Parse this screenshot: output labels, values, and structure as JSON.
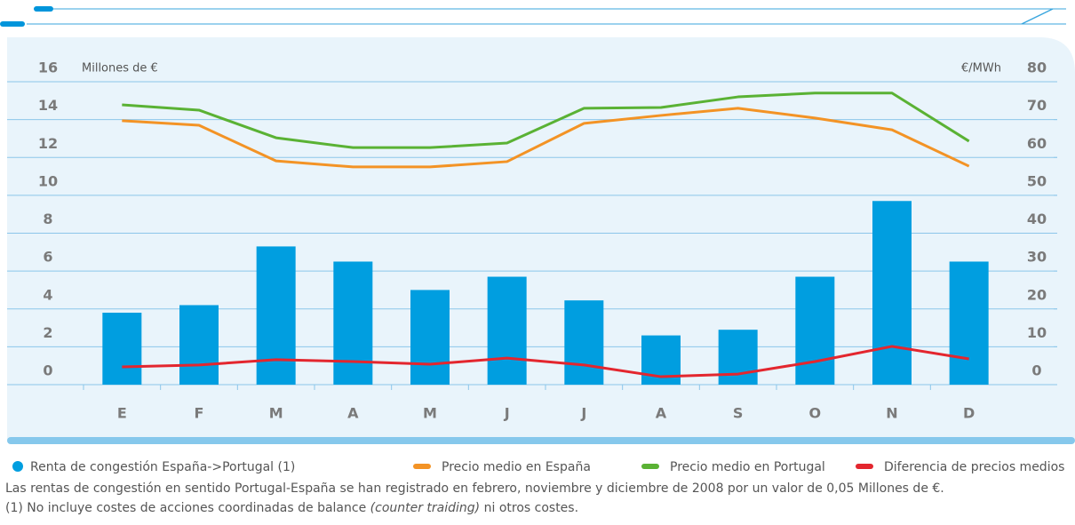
{
  "chart_data": {
    "type": "bar_line",
    "y_label": "Millones de €",
    "y2_label": "€/MWh",
    "categories": [
      "E",
      "F",
      "M",
      "A",
      "M",
      "J",
      "J",
      "A",
      "S",
      "O",
      "N",
      "D"
    ],
    "ylim": [
      0,
      16
    ],
    "yticks": [
      0,
      2,
      4,
      6,
      8,
      10,
      12,
      14,
      16
    ],
    "y2lim": [
      0,
      80
    ],
    "y2ticks": [
      0,
      10,
      20,
      30,
      40,
      50,
      60,
      70,
      80
    ],
    "grid": true,
    "series": [
      {
        "name": "Renta de congestión España->Portugal (1)",
        "type": "bar",
        "color": "#009ee0",
        "values": [
          3.8,
          4.2,
          7.3,
          6.5,
          5.0,
          5.7,
          4.45,
          2.6,
          2.9,
          5.7,
          9.7,
          6.5
        ]
      },
      {
        "name": "Precio medio en España",
        "type": "line",
        "axis": "y2",
        "color": "#f39325",
        "values": [
          69.7,
          68.5,
          59.1,
          57.5,
          57.5,
          58.9,
          69,
          71.1,
          73,
          70.4,
          67.3,
          57.7
        ]
      },
      {
        "name": "Precio medio en Portugal",
        "type": "line",
        "axis": "y2",
        "color": "#5ab234",
        "values": [
          73.9,
          72.5,
          65.2,
          62.6,
          62.6,
          63.8,
          73,
          73.2,
          76,
          77,
          77,
          64.3
        ]
      },
      {
        "name": "Diferencia de precios medios",
        "type": "line",
        "axis": "y2",
        "color": "#e3262e",
        "values": [
          4.7,
          5.2,
          6.6,
          6.1,
          5.4,
          7,
          5.2,
          2.1,
          2.8,
          6.1,
          10.1,
          6.8
        ]
      }
    ],
    "notes": [
      {
        "text": "Las rentas de congestión en sentido Portugal-España se han registrado en febrero, noviembre y diciembre de 2008 por un valor de 0,05 Millones de €."
      },
      {
        "text": "(1) No incluye  costes de acciones coordinadas de balance ",
        "italic": "(counter traiding)",
        "suffix": " ni otros costes."
      }
    ]
  }
}
